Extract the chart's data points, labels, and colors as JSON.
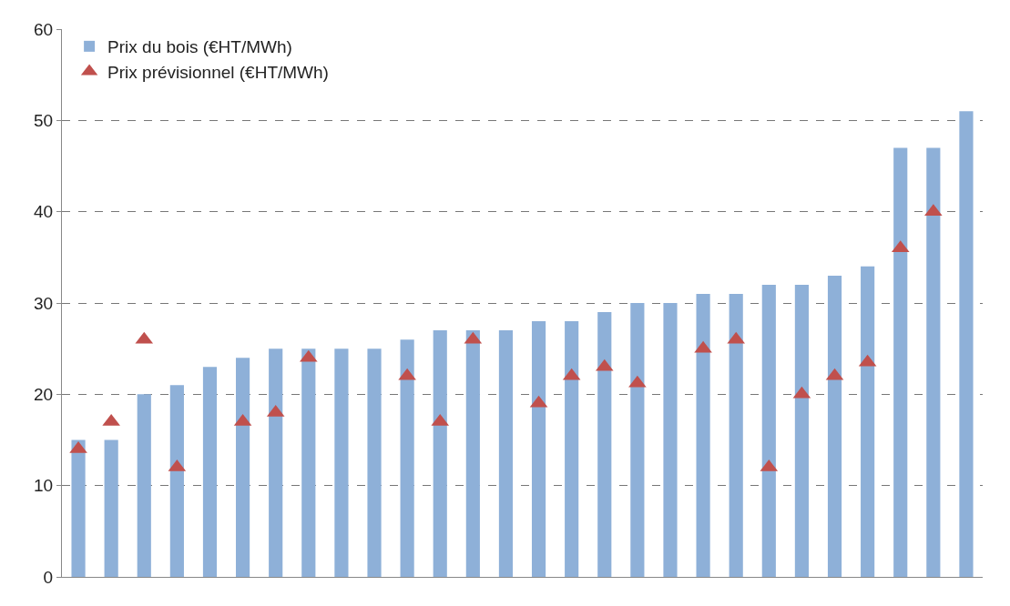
{
  "chart_data": {
    "type": "bar",
    "categories": [
      null,
      null,
      null,
      null,
      null,
      null,
      null,
      null,
      null,
      null,
      null,
      null,
      null,
      null,
      null,
      null,
      null,
      null,
      null,
      null,
      null,
      null,
      null,
      null,
      null,
      null,
      null,
      null
    ],
    "series": [
      {
        "name": "Prix du bois (€HT/MWh)",
        "color": "#8eb0d8",
        "values": [
          15,
          15,
          20,
          21,
          23,
          24,
          25,
          25,
          25,
          25,
          26,
          27,
          27,
          27,
          28,
          28,
          29,
          30,
          30,
          31,
          31,
          32,
          32,
          33,
          34,
          47,
          47,
          51
        ]
      },
      {
        "name": "Prix prévisionnel (€HT/MWh)",
        "type": "scatter",
        "color": "#c0504d",
        "values": [
          14,
          17,
          26,
          12,
          null,
          17,
          18,
          24,
          null,
          null,
          22,
          17,
          26,
          null,
          19,
          22,
          23,
          21.2,
          null,
          25,
          26,
          12,
          20,
          22,
          23.5,
          36,
          40,
          null
        ]
      }
    ],
    "ylim": [
      0,
      60
    ],
    "yticks": [
      0,
      10,
      20,
      30,
      40,
      50,
      60
    ],
    "grid": "y",
    "legend": "top left",
    "marker": "triangle",
    "tick_labels": "y"
  }
}
